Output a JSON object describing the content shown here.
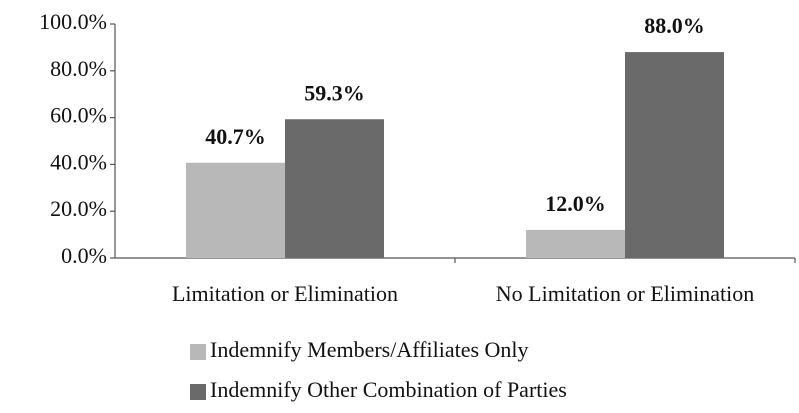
{
  "chart_data": {
    "type": "bar",
    "categories": [
      "Limitation or Elimination",
      "No Limitation or Elimination"
    ],
    "series": [
      {
        "name": "Indemnify Members/Affiliates Only",
        "color": "#b8b8b8",
        "values": [
          40.7,
          12.0
        ],
        "value_labels": [
          "40.7%",
          "12.0%"
        ]
      },
      {
        "name": "Indemnify Other Combination of Parties",
        "color": "#6a6a6a",
        "values": [
          59.3,
          88.0
        ],
        "value_labels": [
          "59.3%",
          "88.0%"
        ]
      }
    ],
    "ylim": [
      0,
      100
    ],
    "yticks": [
      {
        "value": 0,
        "label": "0.0%"
      },
      {
        "value": 20,
        "label": "20.0%"
      },
      {
        "value": 40,
        "label": "40.0%"
      },
      {
        "value": 60,
        "label": "60.0%"
      },
      {
        "value": 80,
        "label": "80.0%"
      },
      {
        "value": 100,
        "label": "100.0%"
      }
    ],
    "legend": "bottom"
  }
}
